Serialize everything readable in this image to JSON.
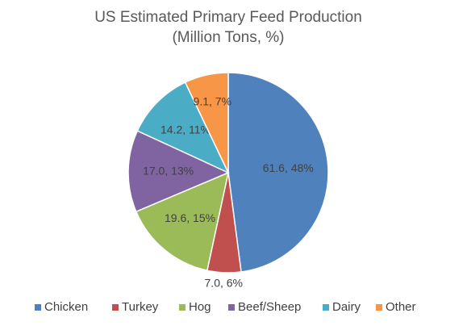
{
  "chart_data": {
    "type": "pie",
    "title": "US Estimated Primary Feed Production",
    "subtitle": "(Million Tons, %)",
    "categories": [
      "Chicken",
      "Turkey",
      "Hog",
      "Beef/Sheep",
      "Dairy",
      "Other"
    ],
    "values": [
      61.6,
      7.0,
      19.6,
      17.0,
      14.2,
      9.1
    ],
    "value_labels": [
      "61.6, 48%",
      "7.0, 6%",
      "19.6, 15%",
      "17.0, 13%",
      "14.2, 11%",
      "9.1, 7%"
    ],
    "colors": [
      "#4f81bd",
      "#c0504d",
      "#9bbb59",
      "#8064a2",
      "#4bacc6",
      "#f79646"
    ],
    "legend": "bottom"
  }
}
